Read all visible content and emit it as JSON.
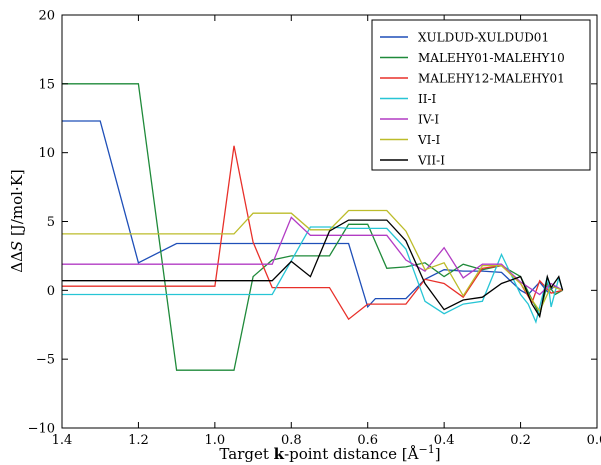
{
  "chart_data": {
    "type": "line",
    "xlabel": "Target k-point distance [Å⁻¹]",
    "xlabel_parts": [
      "Target ",
      "k",
      "-point distance [Å",
      "−1",
      "]"
    ],
    "ylabel": "ΔΔS [J/mol·K]",
    "ylabel_parts": [
      "ΔΔ",
      "S",
      " [J/mol·K]"
    ],
    "xlim": [
      1.4,
      0.0
    ],
    "ylim": [
      -10,
      20
    ],
    "x_ticks": [
      1.4,
      1.2,
      1.0,
      0.8,
      0.6,
      0.4,
      0.2,
      0.0
    ],
    "x_tick_labels": [
      "1.4",
      "1.2",
      "1.0",
      "0.8",
      "0.6",
      "0.4",
      "0.2",
      "0.0"
    ],
    "y_ticks": [
      -10,
      -5,
      0,
      5,
      10,
      15,
      20
    ],
    "y_tick_labels": [
      "−10",
      "−5",
      "0",
      "5",
      "10",
      "15",
      "20"
    ],
    "grid": false,
    "legend_position": "top-right",
    "series": [
      {
        "name": "XULDUD-XULDUD01",
        "color": "#1f4fb8",
        "points": [
          [
            1.4,
            12.3
          ],
          [
            1.3,
            12.3
          ],
          [
            1.2,
            2.0
          ],
          [
            1.1,
            3.4
          ],
          [
            1.0,
            3.4
          ],
          [
            0.9,
            3.4
          ],
          [
            0.8,
            3.4
          ],
          [
            0.7,
            3.4
          ],
          [
            0.65,
            3.4
          ],
          [
            0.6,
            -1.2
          ],
          [
            0.58,
            -0.6
          ],
          [
            0.5,
            -0.6
          ],
          [
            0.45,
            0.8
          ],
          [
            0.4,
            1.5
          ],
          [
            0.35,
            1.4
          ],
          [
            0.3,
            1.4
          ],
          [
            0.25,
            1.3
          ],
          [
            0.2,
            0.0
          ],
          [
            0.18,
            -0.3
          ],
          [
            0.15,
            0.6
          ],
          [
            0.13,
            -0.1
          ],
          [
            0.11,
            0.3
          ],
          [
            0.09,
            0.0
          ]
        ]
      },
      {
        "name": "MALEHY01-MALEHY10",
        "color": "#1f8a3a",
        "points": [
          [
            1.4,
            15.0
          ],
          [
            1.2,
            15.0
          ],
          [
            1.1,
            -5.8
          ],
          [
            0.95,
            -5.8
          ],
          [
            0.9,
            1.0
          ],
          [
            0.85,
            2.2
          ],
          [
            0.8,
            2.5
          ],
          [
            0.7,
            2.5
          ],
          [
            0.65,
            4.8
          ],
          [
            0.6,
            4.8
          ],
          [
            0.55,
            1.6
          ],
          [
            0.5,
            1.7
          ],
          [
            0.45,
            2.0
          ],
          [
            0.4,
            1.0
          ],
          [
            0.35,
            1.9
          ],
          [
            0.3,
            1.5
          ],
          [
            0.25,
            1.8
          ],
          [
            0.2,
            1.0
          ],
          [
            0.15,
            -1.8
          ],
          [
            0.13,
            0.5
          ],
          [
            0.11,
            -0.3
          ],
          [
            0.09,
            0.0
          ]
        ]
      },
      {
        "name": "MALEHY12-MALEHY01",
        "color": "#e8302a",
        "points": [
          [
            1.4,
            0.3
          ],
          [
            1.0,
            0.3
          ],
          [
            0.95,
            10.5
          ],
          [
            0.9,
            3.5
          ],
          [
            0.85,
            0.2
          ],
          [
            0.7,
            0.2
          ],
          [
            0.65,
            -2.1
          ],
          [
            0.6,
            -1.0
          ],
          [
            0.5,
            -1.0
          ],
          [
            0.45,
            0.8
          ],
          [
            0.4,
            0.5
          ],
          [
            0.35,
            -0.5
          ],
          [
            0.3,
            1.6
          ],
          [
            0.25,
            1.8
          ],
          [
            0.2,
            0.5
          ],
          [
            0.17,
            -0.9
          ],
          [
            0.15,
            0.7
          ],
          [
            0.12,
            -0.2
          ],
          [
            0.09,
            0.0
          ]
        ]
      },
      {
        "name": "II-I",
        "color": "#27c5d5",
        "points": [
          [
            1.4,
            -0.3
          ],
          [
            0.85,
            -0.3
          ],
          [
            0.75,
            4.6
          ],
          [
            0.7,
            4.6
          ],
          [
            0.65,
            4.5
          ],
          [
            0.55,
            4.5
          ],
          [
            0.5,
            3.0
          ],
          [
            0.45,
            -0.8
          ],
          [
            0.4,
            -1.7
          ],
          [
            0.35,
            -1.0
          ],
          [
            0.3,
            -0.8
          ],
          [
            0.25,
            2.6
          ],
          [
            0.2,
            -0.3
          ],
          [
            0.18,
            -1.0
          ],
          [
            0.16,
            -2.3
          ],
          [
            0.13,
            1.0
          ],
          [
            0.12,
            -1.2
          ],
          [
            0.1,
            0.9
          ],
          [
            0.09,
            0.0
          ]
        ]
      },
      {
        "name": "IV-I",
        "color": "#b23cc4",
        "points": [
          [
            1.4,
            1.9
          ],
          [
            0.85,
            1.9
          ],
          [
            0.8,
            5.3
          ],
          [
            0.75,
            4.0
          ],
          [
            0.6,
            4.0
          ],
          [
            0.55,
            4.0
          ],
          [
            0.5,
            2.2
          ],
          [
            0.45,
            1.4
          ],
          [
            0.4,
            3.1
          ],
          [
            0.35,
            0.9
          ],
          [
            0.3,
            1.9
          ],
          [
            0.25,
            1.9
          ],
          [
            0.2,
            0.6
          ],
          [
            0.15,
            -0.3
          ],
          [
            0.12,
            0.5
          ],
          [
            0.09,
            0.0
          ]
        ]
      },
      {
        "name": "VI-I",
        "color": "#bcbc2a",
        "points": [
          [
            1.4,
            4.1
          ],
          [
            0.95,
            4.1
          ],
          [
            0.9,
            5.6
          ],
          [
            0.8,
            5.6
          ],
          [
            0.75,
            4.4
          ],
          [
            0.7,
            4.4
          ],
          [
            0.65,
            5.8
          ],
          [
            0.55,
            5.8
          ],
          [
            0.5,
            4.3
          ],
          [
            0.45,
            1.5
          ],
          [
            0.4,
            2.0
          ],
          [
            0.35,
            -0.4
          ],
          [
            0.3,
            1.8
          ],
          [
            0.25,
            1.8
          ],
          [
            0.2,
            0.5
          ],
          [
            0.15,
            -1.5
          ],
          [
            0.12,
            0.3
          ],
          [
            0.09,
            0.0
          ]
        ]
      },
      {
        "name": "VII-I",
        "color": "#000000",
        "points": [
          [
            1.4,
            0.7
          ],
          [
            0.85,
            0.7
          ],
          [
            0.8,
            2.1
          ],
          [
            0.75,
            1.0
          ],
          [
            0.7,
            4.3
          ],
          [
            0.65,
            5.1
          ],
          [
            0.55,
            5.1
          ],
          [
            0.5,
            3.6
          ],
          [
            0.45,
            0.5
          ],
          [
            0.4,
            -1.4
          ],
          [
            0.35,
            -0.7
          ],
          [
            0.3,
            -0.5
          ],
          [
            0.25,
            0.5
          ],
          [
            0.2,
            1.0
          ],
          [
            0.17,
            -1.0
          ],
          [
            0.15,
            -1.9
          ],
          [
            0.13,
            1.0
          ],
          [
            0.12,
            0.2
          ],
          [
            0.1,
            1.0
          ],
          [
            0.09,
            0.0
          ]
        ]
      }
    ]
  }
}
